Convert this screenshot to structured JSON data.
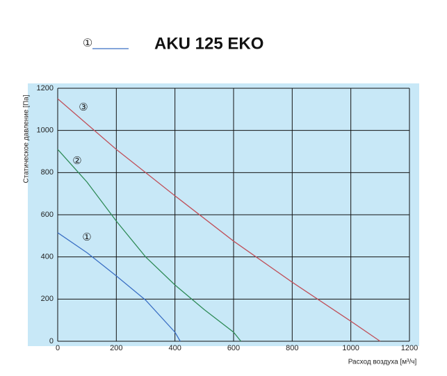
{
  "chart_data": {
    "type": "line",
    "title": "AKU 125 EKO",
    "x_label": "Расход воздуха [м³/ч]",
    "y_label": "Статическое давление [Па]",
    "xlim": [
      0,
      1200
    ],
    "ylim": [
      0,
      1200
    ],
    "xticks": [
      0,
      200,
      400,
      600,
      800,
      1000,
      1200
    ],
    "yticks": [
      0,
      200,
      400,
      600,
      800,
      1000,
      1200
    ],
    "grid": true,
    "background": "#c8e8f7",
    "series": [
      {
        "name": "①",
        "color": "#3a6fc4",
        "x": [
          0,
          100,
          200,
          300,
          400,
          418
        ],
        "values": [
          515,
          420,
          310,
          195,
          43,
          0
        ]
      },
      {
        "name": "②",
        "color": "#2e8b57",
        "x": [
          0,
          100,
          200,
          300,
          400,
          500,
          600,
          625
        ],
        "values": [
          910,
          755,
          570,
          400,
          267,
          150,
          43,
          0
        ]
      },
      {
        "name": "③",
        "color": "#c0505a",
        "x": [
          0,
          200,
          400,
          600,
          800,
          1000,
          1100
        ],
        "values": [
          1150,
          910,
          690,
          475,
          280,
          95,
          0
        ]
      }
    ]
  }
}
